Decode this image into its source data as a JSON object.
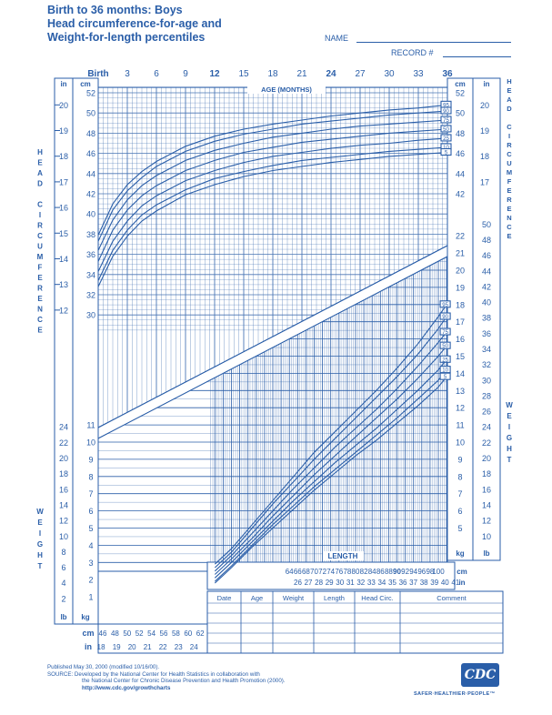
{
  "title": {
    "line1": "Birth to 36 months: Boys",
    "line2": "Head circumference-for-age and",
    "line3": "Weight-for-length percentiles"
  },
  "form": {
    "name_label": "NAME",
    "record_label": "RECORD #"
  },
  "axis_labels": {
    "age_months": "AGE (MONTHS)",
    "length": "LENGTH",
    "head_circumference": [
      "H",
      "E",
      "A",
      "D",
      "",
      "C",
      "I",
      "R",
      "C",
      "U",
      "M",
      "F",
      "E",
      "R",
      "E",
      "N",
      "C",
      "E"
    ],
    "weight": [
      "W",
      "E",
      "I",
      "G",
      "H",
      "T"
    ],
    "unit_in": "in",
    "unit_cm": "cm",
    "unit_kg": "kg",
    "unit_lb": "lb"
  },
  "age_ticks": [
    "Birth",
    "3",
    "6",
    "9",
    "12",
    "15",
    "18",
    "21",
    "24",
    "27",
    "30",
    "33",
    "36"
  ],
  "hc_cm_ticks": [
    "52",
    "50",
    "48",
    "46",
    "44",
    "42",
    "40",
    "38",
    "36",
    "34",
    "32",
    "30"
  ],
  "hc_in_ticks": [
    "20",
    "19",
    "18",
    "17",
    "16",
    "15",
    "14",
    "13",
    "12"
  ],
  "right_hc_cm_ticks": [
    "52",
    "50",
    "48",
    "46",
    "44",
    "42"
  ],
  "right_hc_in_ticks": [
    "20",
    "19",
    "18",
    "17"
  ],
  "right_wt_kg_ticks": [
    "22",
    "21",
    "20",
    "19",
    "18",
    "17",
    "16",
    "15",
    "14",
    "13",
    "12",
    "11",
    "10",
    "9",
    "8",
    "7",
    "6",
    "5"
  ],
  "right_wt_lb_ticks": [
    "50",
    "48",
    "46",
    "44",
    "42",
    "40",
    "38",
    "36",
    "34",
    "32",
    "30",
    "28",
    "26",
    "24",
    "22",
    "20",
    "18",
    "16",
    "14",
    "12",
    "10"
  ],
  "left_wt_kg_ticks": [
    "11",
    "10",
    "9",
    "8",
    "7",
    "6",
    "5",
    "4",
    "3",
    "2",
    "1"
  ],
  "left_wt_lb_ticks": [
    "24",
    "22",
    "20",
    "18",
    "16",
    "14",
    "12",
    "10",
    "8",
    "6",
    "4",
    "2"
  ],
  "length_cm_ticks_right": [
    "64",
    "66",
    "68",
    "70",
    "72",
    "74",
    "76",
    "78",
    "80",
    "82",
    "84",
    "86",
    "88",
    "90",
    "92",
    "94",
    "96",
    "98",
    "100"
  ],
  "length_in_ticks_right": [
    "26",
    "27",
    "28",
    "29",
    "30",
    "31",
    "32",
    "33",
    "34",
    "35",
    "36",
    "37",
    "38",
    "39",
    "40",
    "41"
  ],
  "length_cm_ticks_left": [
    "46",
    "48",
    "50",
    "52",
    "54",
    "56",
    "58",
    "60",
    "62"
  ],
  "length_in_ticks_left": [
    "18",
    "19",
    "20",
    "21",
    "22",
    "23",
    "24"
  ],
  "table_headers": [
    "Date",
    "Age",
    "Weight",
    "Length",
    "Head Circ.",
    "Comment"
  ],
  "percentiles": [
    "95",
    "90",
    "75",
    "50",
    "25",
    "10",
    "5"
  ],
  "footer": {
    "published": "Published May 30, 2000 (modified 10/16/00).",
    "source1": "SOURCE: Developed by the National Center for Health Statistics in collaboration with",
    "source2": "the National Center for Chronic Disease Prevention and Health Promotion (2000).",
    "url": "http://www.cdc.gov/growthcharts"
  },
  "logo": {
    "text": "CDC",
    "tagline": "SAFER·HEALTHIER·PEOPLE™"
  },
  "colors": {
    "ink": "#2a5ea8",
    "grid": "#2a5ea8"
  },
  "chart_data": [
    {
      "type": "line",
      "title": "Head circumference-for-age",
      "xlabel": "AGE (MONTHS)",
      "ylabel": "HEAD CIRCUMFERENCE",
      "xlim": [
        0,
        36
      ],
      "ylim": [
        28.5,
        53.5
      ],
      "x": [
        0,
        1.5,
        3,
        4.5,
        6,
        9,
        12,
        15,
        18,
        21,
        24,
        27,
        30,
        33,
        36
      ],
      "series": [
        {
          "name": "95",
          "values": [
            37.9,
            41.0,
            42.9,
            44.2,
            45.2,
            46.7,
            47.7,
            48.4,
            48.9,
            49.3,
            49.7,
            50.0,
            50.3,
            50.5,
            50.8
          ]
        },
        {
          "name": "90",
          "values": [
            37.3,
            40.4,
            42.3,
            43.6,
            44.7,
            46.2,
            47.2,
            47.9,
            48.4,
            48.9,
            49.2,
            49.5,
            49.8,
            50.0,
            50.2
          ]
        },
        {
          "name": "75",
          "values": [
            36.4,
            39.4,
            41.4,
            42.8,
            43.8,
            45.3,
            46.3,
            47.0,
            47.6,
            48.0,
            48.4,
            48.7,
            48.9,
            49.1,
            49.3
          ]
        },
        {
          "name": "50",
          "values": [
            35.3,
            38.4,
            40.4,
            41.8,
            42.8,
            44.3,
            45.3,
            46.1,
            46.6,
            47.1,
            47.4,
            47.7,
            48.0,
            48.2,
            48.4
          ]
        },
        {
          "name": "25",
          "values": [
            34.3,
            37.3,
            39.3,
            40.8,
            41.8,
            43.3,
            44.3,
            45.1,
            45.7,
            46.1,
            46.5,
            46.8,
            47.0,
            47.3,
            47.5
          ]
        },
        {
          "name": "10",
          "values": [
            33.4,
            36.4,
            38.4,
            39.9,
            40.9,
            42.4,
            43.5,
            44.2,
            44.8,
            45.3,
            45.6,
            45.9,
            46.2,
            46.4,
            46.6
          ]
        },
        {
          "name": "5",
          "values": [
            32.8,
            35.8,
            37.8,
            39.3,
            40.3,
            41.9,
            42.9,
            43.7,
            44.3,
            44.7,
            45.1,
            45.4,
            45.7,
            45.9,
            46.1
          ]
        }
      ]
    },
    {
      "type": "line",
      "title": "Weight-for-length",
      "xlabel": "LENGTH",
      "ylabel": "WEIGHT",
      "xlim": [
        45,
        103.5
      ],
      "ylim": [
        0,
        23.5
      ],
      "x": [
        46,
        50,
        55,
        60,
        65,
        70,
        75,
        80,
        85,
        90,
        95,
        100,
        102
      ],
      "series": [
        {
          "name": "95",
          "values": [
            2.9,
            3.8,
            5.2,
            6.6,
            8.0,
            9.4,
            10.6,
            11.8,
            13.0,
            14.3,
            15.7,
            17.3,
            18.0
          ]
        },
        {
          "name": "90",
          "values": [
            2.7,
            3.6,
            5.0,
            6.4,
            7.7,
            9.0,
            10.2,
            11.4,
            12.6,
            13.8,
            15.1,
            16.6,
            17.3
          ]
        },
        {
          "name": "75",
          "values": [
            2.5,
            3.4,
            4.7,
            6.0,
            7.3,
            8.5,
            9.7,
            10.8,
            11.9,
            13.1,
            14.4,
            15.8,
            16.4
          ]
        },
        {
          "name": "50",
          "values": [
            2.3,
            3.2,
            4.4,
            5.7,
            6.9,
            8.1,
            9.2,
            10.3,
            11.4,
            12.5,
            13.7,
            15.0,
            15.6
          ]
        },
        {
          "name": "25",
          "values": [
            2.1,
            3.0,
            4.2,
            5.4,
            6.6,
            7.7,
            8.8,
            9.8,
            10.8,
            11.9,
            13.0,
            14.2,
            14.8
          ]
        },
        {
          "name": "10",
          "values": [
            1.9,
            2.8,
            4.0,
            5.2,
            6.3,
            7.4,
            8.4,
            9.4,
            10.4,
            11.4,
            12.5,
            13.6,
            14.2
          ]
        },
        {
          "name": "5",
          "values": [
            1.8,
            2.7,
            3.9,
            5.0,
            6.1,
            7.2,
            8.2,
            9.2,
            10.1,
            11.1,
            12.1,
            13.2,
            13.8
          ]
        }
      ]
    }
  ]
}
